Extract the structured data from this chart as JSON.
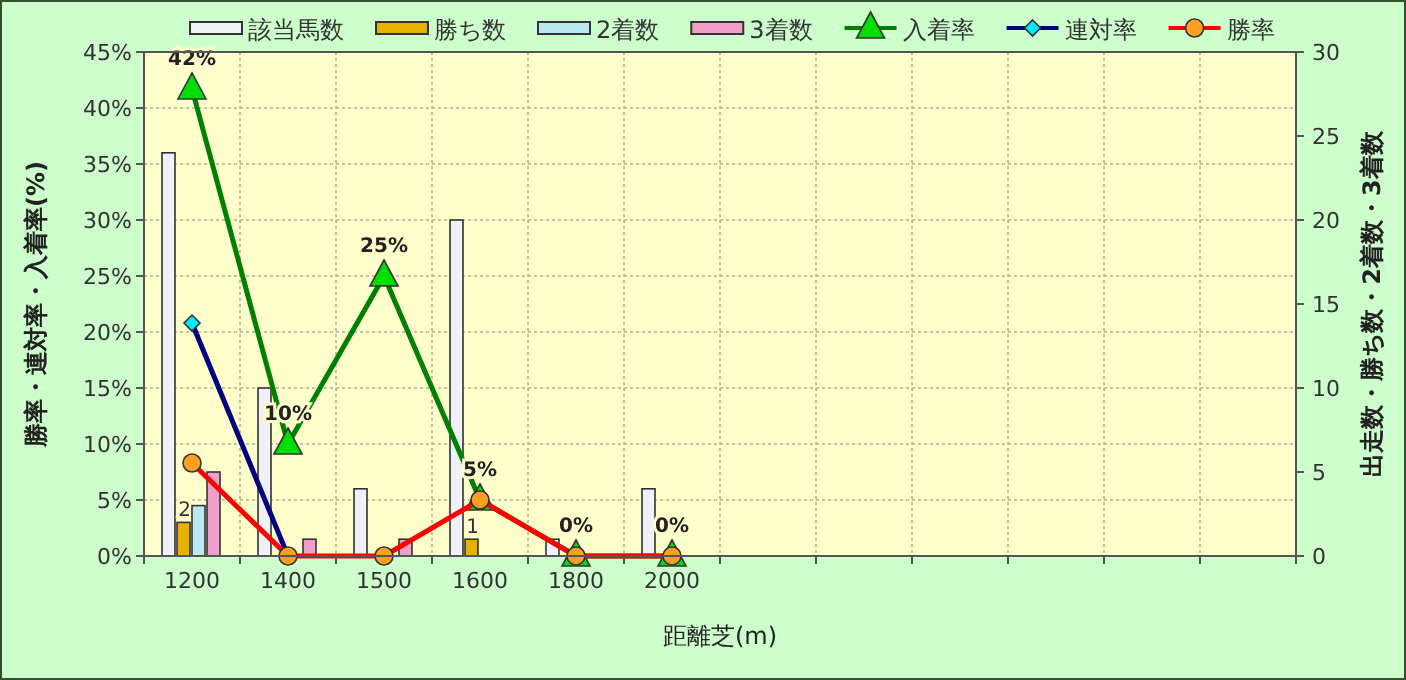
{
  "chart_data": {
    "type": "bar",
    "xlabel": "距離芝(m)",
    "ylabel": "勝率・連対率・入着率(%)",
    "y2label": "出走数・勝ち数・2着数・3着数",
    "categories": [
      "1200",
      "1400",
      "1500",
      "1600",
      "1800",
      "2000",
      null,
      null,
      null,
      null,
      null,
      null
    ],
    "series": [
      {
        "name": "該当馬数",
        "axis": "y2",
        "color": "#f0f0f8",
        "values": [
          24,
          10,
          4,
          20,
          1,
          4,
          null,
          null,
          null,
          null,
          null,
          null
        ]
      },
      {
        "name": "勝ち数",
        "axis": "y2",
        "color": "#e8b000",
        "values": [
          2,
          0,
          0,
          1,
          0,
          0,
          null,
          null,
          null,
          null,
          null,
          null
        ],
        "value_labels": [
          "2",
          null,
          null,
          "1",
          null,
          null,
          null,
          null,
          null,
          null,
          null,
          null
        ]
      },
      {
        "name": "2着数",
        "axis": "y2",
        "color": "#b8e8f0",
        "values": [
          3,
          0,
          0,
          0,
          0,
          0,
          null,
          null,
          null,
          null,
          null,
          null
        ]
      },
      {
        "name": "3着数",
        "axis": "y2",
        "color": "#f0a0c8",
        "values": [
          5,
          1,
          1,
          0,
          0,
          0,
          null,
          null,
          null,
          null,
          null,
          null
        ]
      },
      {
        "name": "入着率",
        "type": "line",
        "axis": "y",
        "color": "#008000",
        "marker": "triangle",
        "values": [
          41.7,
          10,
          25,
          5,
          0,
          0,
          null,
          null,
          null,
          null,
          null,
          null
        ],
        "value_labels": [
          "42%",
          "10%",
          "25%",
          "5%",
          "0%",
          "0%",
          null,
          null,
          null,
          null,
          null,
          null
        ]
      },
      {
        "name": "連対率",
        "type": "line",
        "axis": "y",
        "color": "#000080",
        "marker": "diamond",
        "values": [
          20.8,
          0,
          null,
          null,
          null,
          null,
          null,
          null,
          null,
          null,
          null,
          null
        ]
      },
      {
        "name": "勝率",
        "type": "line",
        "axis": "y",
        "color": "#ff0000",
        "marker": "circle",
        "values": [
          8.3,
          0,
          0,
          5,
          0,
          0,
          null,
          null,
          null,
          null,
          null,
          null
        ]
      }
    ],
    "ylim": [
      0,
      45
    ],
    "yticks": [
      {
        "value": 0,
        "label": "0%"
      },
      {
        "value": 5,
        "label": "5%"
      },
      {
        "value": 10,
        "label": "10%"
      },
      {
        "value": 15,
        "label": "15%"
      },
      {
        "value": 20,
        "label": "20%"
      },
      {
        "value": 25,
        "label": "25%"
      },
      {
        "value": 30,
        "label": "30%"
      },
      {
        "value": 35,
        "label": "35%"
      },
      {
        "value": 40,
        "label": "40%"
      },
      {
        "value": 45,
        "label": "45%"
      }
    ],
    "y2lim": [
      0,
      30
    ],
    "y2ticks": [
      0,
      5,
      10,
      15,
      20,
      25,
      30
    ],
    "grid": true,
    "legend": "top"
  }
}
